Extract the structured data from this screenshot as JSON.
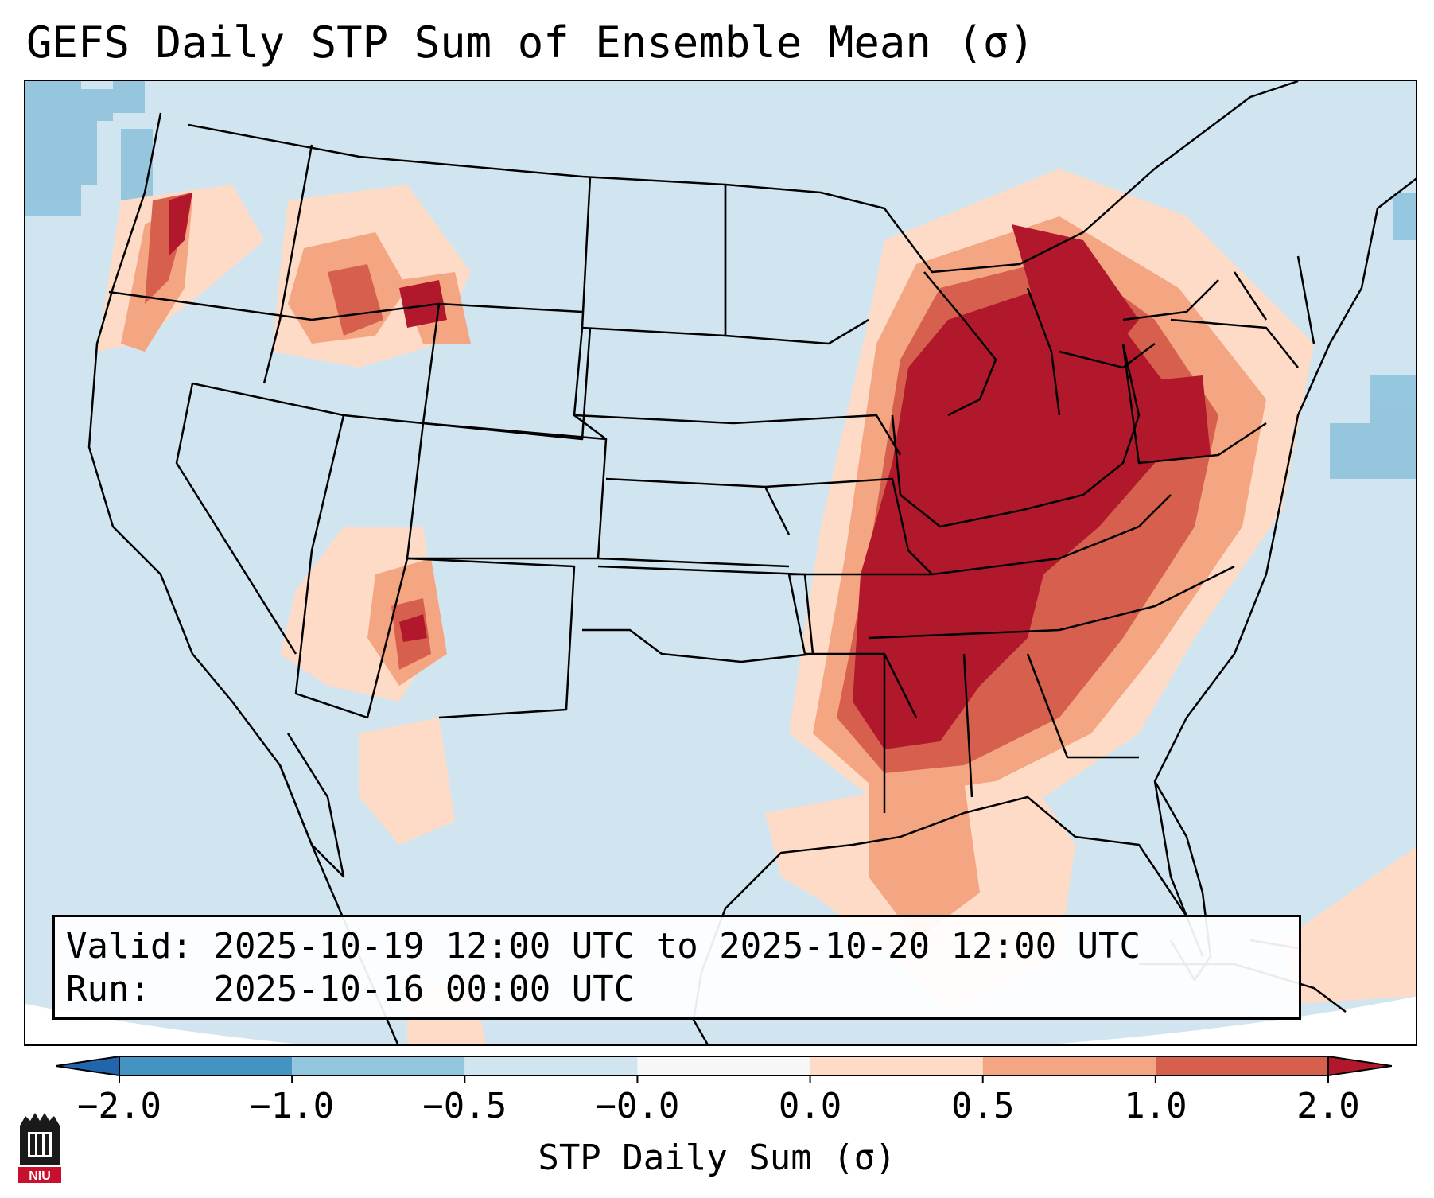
{
  "title": "GEFS Daily STP Sum of Ensemble Mean (σ)",
  "info": {
    "valid_label": "Valid:",
    "valid_value": "2025-10-19 12:00 UTC to 2025-10-20 12:00 UTC",
    "run_label": "Run:",
    "run_value": "2025-10-16 00:00 UTC"
  },
  "colorbar": {
    "label": "STP Daily Sum (σ)",
    "ticks": [
      "−2.0",
      "−1.0",
      "−0.5",
      "−0.0",
      "0.0",
      "0.5",
      "1.0",
      "2.0"
    ],
    "colors": [
      "#4393c3",
      "#92c5de",
      "#d1e5f0",
      "#f7f7f7",
      "#fddbc7",
      "#f4a582",
      "#d6604d"
    ],
    "under_color": "#2166ac",
    "over_color": "#b2182b"
  },
  "legend_colors": {
    "ocean_land_base": "#d1e5f0",
    "strong_positive": "#b2182b",
    "moderate_positive": "#d6604d",
    "weak_positive": "#f4a582",
    "slight_positive": "#fddbc7",
    "weak_negative": "#92c5de"
  },
  "logo": {
    "text": "NIU",
    "color": "#c8102e"
  }
}
